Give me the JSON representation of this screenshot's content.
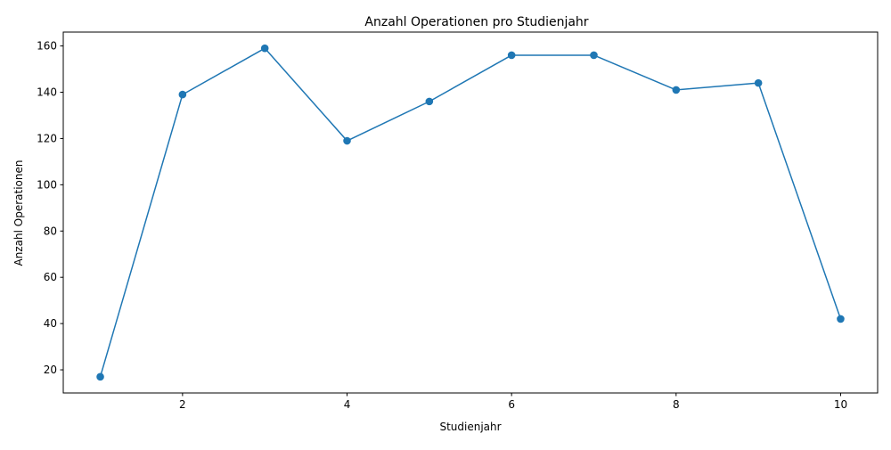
{
  "chart_data": {
    "type": "line",
    "title": "Anzahl Operationen pro Studienjahr",
    "xlabel": "Studienjahr",
    "ylabel": "Anzahl Operationen",
    "xlim": [
      0.55,
      10.45
    ],
    "ylim": [
      10,
      166
    ],
    "xticks": [
      2,
      4,
      6,
      8,
      10
    ],
    "yticks": [
      20,
      40,
      60,
      80,
      100,
      120,
      140,
      160
    ],
    "grid": false,
    "legend": "none",
    "series": [
      {
        "color": "#1f77b4",
        "marker": "circle",
        "x": [
          1,
          2,
          3,
          4,
          5,
          6,
          7,
          8,
          9,
          10
        ],
        "values": [
          17,
          139,
          159,
          119,
          136,
          156,
          156,
          141,
          144,
          42
        ]
      }
    ]
  }
}
